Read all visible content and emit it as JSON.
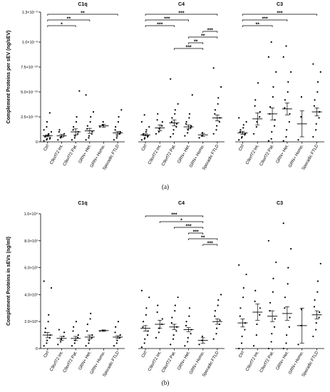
{
  "chart_data": [
    {
      "type": "dot",
      "panel_label": "(a)",
      "y_label": "Complement Proteins per sEV (ng/sEV)",
      "color": "#000000",
      "ylim": [
        0,
        1.3e-09
      ],
      "yticks": [
        0,
        {
          "value": 2.5e-10,
          "label": "2.5×10⁻¹⁰"
        },
        {
          "value": 5e-10,
          "label": "5.0×10⁻¹⁰"
        },
        {
          "value": 7.5e-10,
          "label": "7.5×10⁻¹⁰"
        },
        {
          "value": 1e-09,
          "label": "1.0×10⁻⁹"
        },
        {
          "value": 1.3e-09,
          "label": "1.3×10⁻⁹"
        }
      ],
      "groups": [
        {
          "title": "C1q",
          "categories": [
            "Ctrl",
            "C9orf72 Int.",
            "C9orf72 Pat.",
            "GRN+ Het.",
            "GRN+ Homo.",
            "Sporadic FTLD"
          ],
          "points": [
            [
              1e-11,
              2e-11,
              3e-11,
              3e-11,
              4e-11,
              5e-11,
              6e-11,
              7e-11,
              8e-11,
              1e-10,
              1.2e-10,
              1.5e-10,
              2e-10,
              2.9e-10
            ],
            [
              2e-11,
              4e-11,
              5e-11,
              6e-11,
              8e-11,
              1e-10,
              1.2e-10
            ],
            [
              2e-11,
              4e-11,
              6e-11,
              8e-11,
              1e-10,
              1.2e-10,
              1.5e-10,
              2e-10,
              2.5e-10,
              5.1e-10
            ],
            [
              2e-11,
              4e-11,
              6e-11,
              8e-11,
              1e-10,
              1.3e-10,
              1.6e-10,
              2e-10,
              2.5e-10,
              3e-10,
              4.7e-10
            ],
            [
              1.5e-10,
              1.7e-10,
              2e-10
            ],
            [
              2e-11,
              4e-11,
              6e-11,
              8e-11,
              1e-10,
              1.2e-10,
              1.5e-10,
              2e-10,
              2.5e-10,
              3.2e-10
            ]
          ],
          "mean": [
            6e-11,
            6e-11,
            1e-10,
            1.1e-10,
            1.6e-10,
            9e-11
          ],
          "sem": [
            1e-11,
            1.5e-11,
            3e-11,
            2.5e-11,
            1.5e-11,
            1.5e-11
          ],
          "brackets": [
            {
              "from": "Ctrl",
              "to": "Sporadic FTLD",
              "label": "**"
            },
            {
              "from": "Ctrl",
              "to": "GRN+ Het.",
              "label": "**"
            },
            {
              "from": "Ctrl",
              "to": "C9orf72 Pat.",
              "label": "*"
            }
          ]
        },
        {
          "title": "C4",
          "categories": [
            "Ctrl",
            "C9orf72 Int.",
            "C9orf72 Pat.",
            "GRN+ Het.",
            "GRN+ Homo.",
            "Sporadic FTLD"
          ],
          "points": [
            [
              2e-11,
              3e-11,
              4e-11,
              5e-11,
              6e-11,
              7e-11,
              8e-11,
              1e-10,
              1.2e-10,
              1.5e-10,
              2e-10,
              2.7e-10
            ],
            [
              8e-11,
              1e-10,
              1.3e-10,
              1.6e-10,
              2e-10,
              2.2e-10,
              2.8e-10
            ],
            [
              5e-11,
              8e-11,
              1.2e-10,
              1.5e-10,
              1.8e-10,
              2e-10,
              2.4e-10,
              2.8e-10,
              3.2e-10,
              3.8e-10,
              6.3e-10
            ],
            [
              6e-11,
              9e-11,
              1.2e-10,
              1.4e-10,
              1.6e-10,
              1.8e-10,
              2e-10,
              2.4e-10,
              2.8e-10,
              4.7e-10
            ],
            [
              4e-11,
              6e-11,
              9e-11
            ],
            [
              8e-11,
              1.2e-10,
              1.6e-10,
              2e-10,
              2.4e-10,
              2.8e-10,
              3.2e-10,
              3.8e-10,
              4.4e-10,
              5.5e-10,
              7.4e-10
            ]
          ],
          "mean": [
            7e-11,
            1.4e-10,
            1.9e-10,
            1.5e-10,
            7e-11,
            2.4e-10
          ],
          "sem": [
            1e-11,
            3e-11,
            3e-11,
            2e-11,
            1.5e-11,
            3e-11
          ],
          "brackets": [
            {
              "from": "Ctrl",
              "to": "Sporadic FTLD",
              "label": "***"
            },
            {
              "from": "Ctrl",
              "to": "GRN+ Het.",
              "label": "***"
            },
            {
              "from": "Ctrl",
              "to": "C9orf72 Pat.",
              "label": "***"
            },
            {
              "from": "GRN+ Homo.",
              "to": "Sporadic FTLD",
              "label": "***"
            },
            {
              "from": "GRN+ Het.",
              "to": "Sporadic FTLD",
              "label": "**"
            },
            {
              "from": "GRN+ Het.",
              "to": "GRN+ Homo.",
              "label": "**"
            },
            {
              "from": "C9orf72 Pat.",
              "to": "GRN+ Homo.",
              "label": "***"
            }
          ]
        },
        {
          "title": "C3",
          "categories": [
            "Ctrl",
            "C9orf72 Int.",
            "C9orf72 Pat.",
            "GRN+ Het.",
            "GRN+ Homo.",
            "Sporadic FTLD"
          ],
          "points": [
            [
              2e-11,
              4e-11,
              5e-11,
              7e-11,
              8e-11,
              1e-10,
              1.2e-10,
              1.4e-10,
              1.7e-10,
              2e-10,
              2.4e-10
            ],
            [
              8e-11,
              1.5e-10,
              2e-10,
              2.5e-10,
              3e-10,
              3.6e-10,
              4.2e-10,
              5.9e-10
            ],
            [
              1e-11,
              3e-11,
              1e-10,
              1.6e-10,
              2.2e-10,
              2.8e-10,
              3.5e-10,
              4.5e-10,
              5.5e-10,
              7e-10,
              8.5e-10,
              1e-09
            ],
            [
              1e-11,
              5e-11,
              1.2e-10,
              2e-10,
              2.8e-10,
              3.4e-10,
              4.2e-10,
              5e-10,
              6e-10,
              7e-10,
              8.5e-10,
              9.6e-10
            ],
            [
              2e-11,
              2.5e-10,
              4.5e-10
            ],
            [
              5e-11,
              1.2e-10,
              1.8e-10,
              2.4e-10,
              3e-10,
              3.6e-10,
              4.2e-10,
              5e-10,
              6e-10,
              7e-10,
              7.8e-10
            ]
          ],
          "mean": [
            9e-11,
            2.3e-10,
            2.8e-10,
            3.3e-10,
            1.8e-10,
            3e-10
          ],
          "sem": [
            1.5e-11,
            6e-11,
            6e-11,
            6e-11,
            1.3e-10,
            4e-11
          ],
          "brackets": [
            {
              "from": "Ctrl",
              "to": "Sporadic FTLD",
              "label": "***"
            },
            {
              "from": "Ctrl",
              "to": "GRN+ Het.",
              "label": "***"
            },
            {
              "from": "Ctrl",
              "to": "C9orf72 Pat.",
              "label": "**"
            }
          ]
        }
      ]
    },
    {
      "type": "dot",
      "panel_label": "(b)",
      "y_label": "Complement Proteins in sEVs (ng/ml)",
      "color": "#000000",
      "ylim": [
        0,
        10000
      ],
      "yticks": [
        0,
        {
          "value": 2000,
          "label": "2.0×10³"
        },
        {
          "value": 4000,
          "label": "4.0×10³"
        },
        {
          "value": 6000,
          "label": "6.0×10³"
        },
        {
          "value": 8000,
          "label": "8.0×10³"
        },
        {
          "value": 10000,
          "label": "1.0×10⁴"
        }
      ],
      "groups": [
        {
          "title": "C1q",
          "categories": [
            "Ctrl",
            "C9orf72 Int.",
            "C9orf72 Pat.",
            "GRN+ Het.",
            "GRN+ Homo.",
            "Sporadic FTLD"
          ],
          "points": [
            [
              200,
              400,
              600,
              800,
              1000,
              1200,
              1500,
              2000,
              2500,
              4500,
              5000
            ],
            [
              300,
              500,
              700,
              900,
              1200,
              1400
            ],
            [
              200,
              400,
              600,
              800,
              1000,
              1300,
              1600,
              2000
            ],
            [
              200,
              400,
              600,
              800,
              1000,
              1300,
              1800,
              2200,
              2600
            ],
            [
              1300,
              1350
            ],
            [
              200,
              400,
              600,
              800,
              1000,
              1200,
              1600,
              2000
            ]
          ],
          "mean": [
            1000,
            750,
            750,
            850,
            1330,
            850
          ],
          "sem": [
            200,
            150,
            150,
            150,
            50,
            100
          ],
          "brackets": []
        },
        {
          "title": "C4",
          "categories": [
            "Ctrl",
            "C9orf72 Int.",
            "C9orf72 Pat.",
            "GRN+ Het.",
            "GRN+ Homo.",
            "Sporadic FTLD"
          ],
          "points": [
            [
              100,
              400,
              700,
              1000,
              1300,
              1600,
              2000,
              2500,
              3000,
              3800,
              4300
            ],
            [
              800,
              1200,
              1500,
              1800,
              2200,
              2700,
              3200
            ],
            [
              300,
              700,
              1000,
              1300,
              1600,
              1900,
              2300,
              2800,
              3200,
              3800
            ],
            [
              200,
              500,
              800,
              1100,
              1400,
              1700,
              2000,
              2400,
              3000
            ],
            [
              300,
              600,
              900
            ],
            [
              700,
              1100,
              1500,
              1800,
              2100,
              2400,
              2800,
              3200,
              3600,
              4000
            ]
          ],
          "mean": [
            1500,
            1800,
            1600,
            1400,
            600,
            2000
          ],
          "sem": [
            200,
            300,
            200,
            150,
            200,
            200
          ],
          "brackets": [
            {
              "from": "Ctrl",
              "to": "GRN+ Homo.",
              "label": "***"
            },
            {
              "from": "C9orf72 Int.",
              "to": "GRN+ Homo.",
              "label": "*"
            },
            {
              "from": "C9orf72 Pat.",
              "to": "GRN+ Homo.",
              "label": "***"
            },
            {
              "from": "GRN+ Het.",
              "to": "GRN+ Homo.",
              "label": "***"
            },
            {
              "from": "GRN+ Het.",
              "to": "Sporadic FTLD",
              "label": "**"
            },
            {
              "from": "GRN+ Homo.",
              "to": "Sporadic FTLD",
              "label": "***"
            }
          ]
        },
        {
          "title": "C3",
          "categories": [
            "Ctrl",
            "C9orf72 Int.",
            "C9orf72 Pat.",
            "GRN+ Het.",
            "GRN+ Homo.",
            "Sporadic FTLD"
          ],
          "points": [
            [
              0,
              400,
              900,
              1400,
              1900,
              2400,
              3000,
              3800,
              4500,
              5500,
              6200
            ],
            [
              200,
              1000,
              1800,
              2500,
              3000,
              3500,
              4300
            ],
            [
              0,
              500,
              1100,
              1600,
              2200,
              2800,
              3400,
              4200,
              5200,
              6400,
              8000
            ],
            [
              0,
              400,
              1000,
              1600,
              2300,
              3000,
              3800,
              4800,
              6000,
              7400,
              9300
            ],
            [
              300,
              1700,
              2900
            ],
            [
              900,
              1400,
              1900,
              2300,
              2700,
              3100,
              3600,
              4200,
              5000,
              6300
            ]
          ],
          "mean": [
            1900,
            2700,
            2400,
            2600,
            1700,
            2500
          ],
          "sem": [
            300,
            600,
            400,
            500,
            1300,
            300
          ],
          "brackets": []
        }
      ]
    }
  ]
}
